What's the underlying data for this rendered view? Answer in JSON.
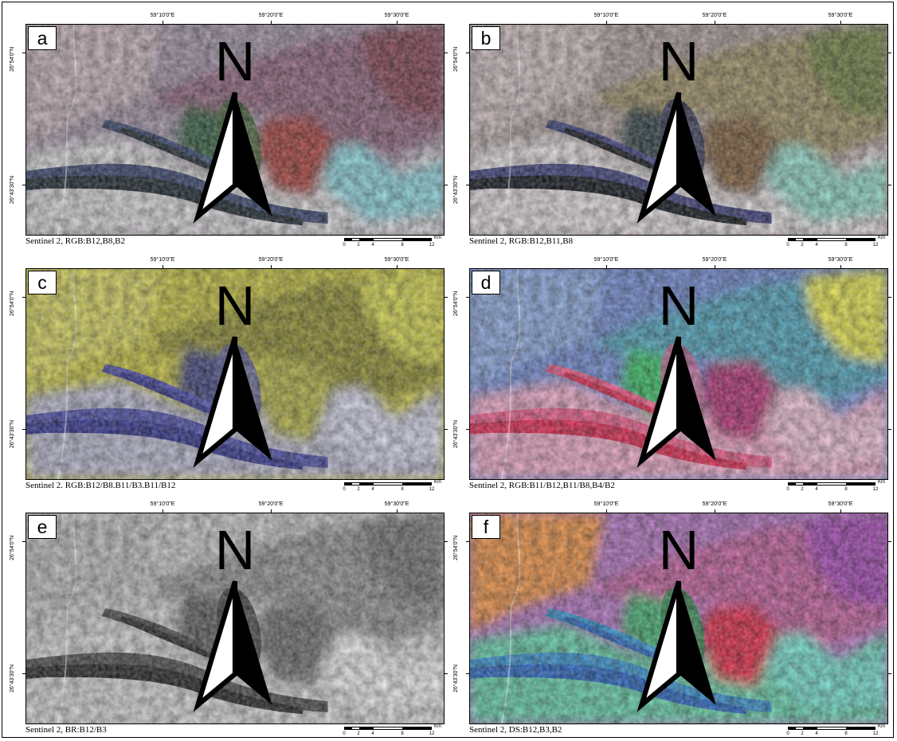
{
  "longitude_labels": [
    "59°10'0\"E",
    "59°20'0\"E",
    "59°30'0\"E"
  ],
  "latitude_labels": [
    "26°54'0\"N",
    "26°43'30\"N"
  ],
  "north_label": "N",
  "scale_bar": {
    "unit": "Km",
    "labels": [
      "0",
      "2",
      "4",
      "8",
      "12"
    ]
  },
  "panels": [
    {
      "letter": "a",
      "caption": "Sentinel 2, RGB:B12,B8,B2",
      "palette": {
        "base": "#9d8fa2",
        "ridge": "#8a5e78",
        "ne": "#7d3a4a",
        "alluvium": "#d8d6d8",
        "valley": "#152028",
        "valley2": "#33406a",
        "ellipse": "#3f5e30",
        "green": "#2f5a3a",
        "red": "#a33b34",
        "cyan": "#8ad5df",
        "fan": "#c7b2b8"
      }
    },
    {
      "letter": "b",
      "caption": "Sentinel 2, RGB:B12,B11,B8",
      "palette": {
        "base": "#a89a98",
        "ridge": "#9a8b5e",
        "ne": "#6a7a3a",
        "alluvium": "#e3dde0",
        "valley": "#080c14",
        "valley2": "#3a3c7a",
        "ellipse": "#2c3150",
        "green": "#2a3a40",
        "red": "#7a5a38",
        "cyan": "#8fd8c8",
        "fan": "#cdbdbf"
      }
    },
    {
      "letter": "c",
      "caption": "Sentinel 2. RGB:B12/B8.B11/B3.B11/B12",
      "palette": {
        "base": "#c4c03a",
        "ridge": "#8c8a2a",
        "ne": "#d6d64a",
        "alluvium": "#b8b8d0",
        "valley": "#2a2c8a",
        "valley2": "#484aa8",
        "ellipse": "#5a5c9a",
        "green": "#3a3c7a",
        "red": "#b0b040",
        "cyan": "#d6d6ec",
        "fan": "#d8d45a"
      }
    },
    {
      "letter": "d",
      "caption": "Sentinel 2, RGB:B11/B12,B11/B8,B4/B2",
      "palette": {
        "base": "#6c86d0",
        "ridge": "#4aa0b8",
        "ne": "#e8e64a",
        "alluvium": "#f0a8c8",
        "valley": "#e0204a",
        "valley2": "#f05a8a",
        "ellipse": "#c86a9a",
        "green": "#30c060",
        "red": "#b02a70",
        "cyan": "#f2c2d8",
        "fan": "#8aa8e0"
      }
    },
    {
      "letter": "e",
      "caption": "Sentinel 2, BR:B12/B3",
      "palette": {
        "base": "#c8c8c8",
        "ridge": "#909090",
        "ne": "#707070",
        "alluvium": "#d4d4d4",
        "valley": "#1e1e1e",
        "valley2": "#4a4a4a",
        "ellipse": "#3a3a3a",
        "green": "#5a5a5a",
        "red": "#6a6a6a",
        "cyan": "#eeeeee",
        "fan": "#bcbcbc"
      }
    },
    {
      "letter": "f",
      "caption": "Sentinel 2, DS:B12,B3,B2",
      "palette": {
        "base": "#b070c0",
        "ridge": "#c05a9a",
        "ne": "#a040b0",
        "alluvium": "#60d0a8",
        "valley": "#2060c0",
        "valley2": "#3090d0",
        "ellipse": "#2a8a4a",
        "green": "#40b070",
        "red": "#e02040",
        "cyan": "#70e0d0",
        "fan": "#f09040"
      }
    }
  ]
}
